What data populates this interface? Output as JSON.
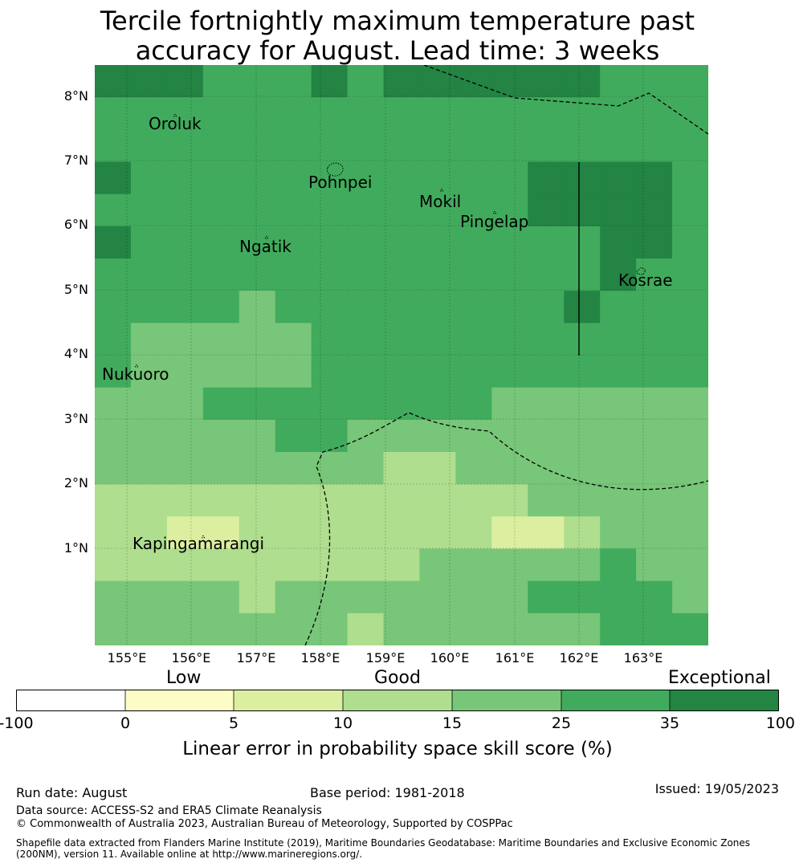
{
  "title_line1": "Tercile fortnightly maximum temperature past",
  "title_line2": "accuracy for August. Lead time: 3 weeks",
  "map": {
    "lat_labels": [
      "8°N",
      "7°N",
      "6°N",
      "5°N",
      "4°N",
      "3°N",
      "2°N",
      "1°N"
    ],
    "lon_labels": [
      "155°E",
      "156°E",
      "157°E",
      "158°E",
      "159°E",
      "160°E",
      "161°E",
      "162°E",
      "163°E"
    ],
    "places": [
      "Oroluk",
      "Pohnpei",
      "Mokil",
      "Pingelap",
      "Ngatik",
      "Kosrae",
      "Nukuoro",
      "Kapingamarangi"
    ],
    "colors": {
      "c0": "#ffffff",
      "c1": "#fefcc6",
      "c2": "#dcefa0",
      "c3": "#aede8e",
      "c4": "#78c679",
      "c5": "#41ab5d",
      "c6": "#238443"
    },
    "grid": [
      [
        6,
        6,
        6,
        5,
        5,
        5,
        6,
        5,
        6,
        6,
        6,
        6,
        6,
        6,
        5,
        5,
        5
      ],
      [
        5,
        5,
        5,
        5,
        5,
        5,
        5,
        5,
        5,
        5,
        5,
        5,
        5,
        5,
        5,
        5,
        5
      ],
      [
        5,
        5,
        5,
        5,
        5,
        5,
        5,
        5,
        5,
        5,
        5,
        5,
        5,
        5,
        5,
        5,
        5
      ],
      [
        6,
        5,
        5,
        5,
        5,
        5,
        5,
        5,
        5,
        5,
        5,
        5,
        6,
        6,
        6,
        6,
        5
      ],
      [
        5,
        5,
        5,
        5,
        5,
        5,
        5,
        5,
        5,
        5,
        5,
        5,
        6,
        6,
        6,
        6,
        5
      ],
      [
        6,
        5,
        5,
        5,
        5,
        5,
        5,
        5,
        5,
        5,
        5,
        5,
        5,
        5,
        6,
        6,
        5
      ],
      [
        5,
        5,
        5,
        5,
        5,
        5,
        5,
        5,
        5,
        5,
        5,
        5,
        5,
        5,
        6,
        5,
        5
      ],
      [
        5,
        5,
        5,
        5,
        4,
        5,
        5,
        5,
        5,
        5,
        5,
        5,
        5,
        6,
        5,
        5,
        5
      ],
      [
        5,
        4,
        4,
        4,
        4,
        4,
        5,
        5,
        5,
        5,
        5,
        5,
        5,
        5,
        5,
        5,
        5
      ],
      [
        5,
        4,
        4,
        4,
        4,
        4,
        5,
        5,
        5,
        5,
        5,
        5,
        5,
        5,
        5,
        5,
        5
      ],
      [
        4,
        4,
        4,
        5,
        5,
        5,
        5,
        5,
        5,
        5,
        5,
        4,
        4,
        4,
        4,
        4,
        4
      ],
      [
        4,
        4,
        4,
        4,
        4,
        5,
        5,
        4,
        4,
        4,
        4,
        4,
        4,
        4,
        4,
        4,
        4
      ],
      [
        4,
        4,
        4,
        4,
        4,
        4,
        4,
        4,
        3,
        3,
        4,
        4,
        4,
        4,
        4,
        4,
        4
      ],
      [
        3,
        3,
        3,
        3,
        3,
        3,
        3,
        3,
        3,
        3,
        3,
        3,
        4,
        4,
        4,
        4,
        4
      ],
      [
        3,
        3,
        2,
        2,
        3,
        3,
        3,
        3,
        3,
        3,
        3,
        2,
        2,
        3,
        4,
        4,
        4
      ],
      [
        3,
        3,
        3,
        3,
        3,
        3,
        3,
        3,
        3,
        4,
        4,
        4,
        4,
        4,
        5,
        4,
        4
      ],
      [
        4,
        4,
        4,
        4,
        3,
        4,
        4,
        4,
        4,
        4,
        4,
        4,
        5,
        5,
        5,
        5,
        4
      ],
      [
        4,
        4,
        4,
        4,
        4,
        4,
        4,
        3,
        4,
        4,
        4,
        4,
        4,
        4,
        5,
        5,
        5
      ]
    ]
  },
  "colorbar": {
    "categories": [
      "Low",
      "Good",
      "Exceptional"
    ],
    "ticks": [
      "-100",
      "0",
      "5",
      "10",
      "15",
      "25",
      "35",
      "100"
    ],
    "title": "Linear error in probability space skill score (%)"
  },
  "footer": {
    "run_date": "Run date: August",
    "base_period": "Base period: 1981-2018",
    "issued": "Issued: 19/05/2023",
    "data_source": "Data source: ACCESS-S2 and ERA5 Climate Reanalysis",
    "copyright": "© Commonwealth of Australia 2023, Australian Bureau of Meteorology, Supported by COSPPac",
    "shapefile_line1": "Shapefile data extracted from Flanders Marine Institute (2019), Maritime Boundaries Geodatabase: Maritime Boundaries and Exclusive Economic Zones",
    "shapefile_line2": "(200NM), version 11. Available online at http://www.marineregions.org/."
  }
}
